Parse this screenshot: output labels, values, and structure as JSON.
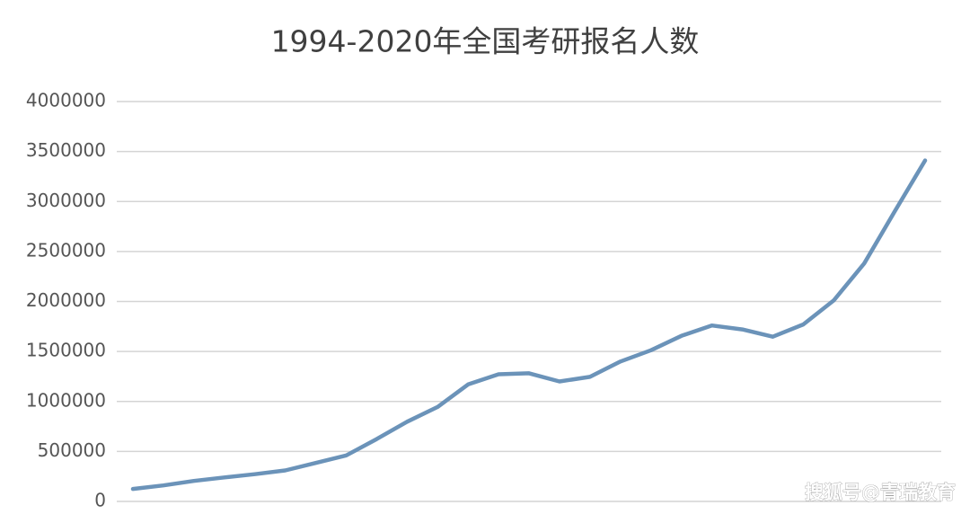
{
  "chart_data": {
    "type": "line",
    "title": "1994-2020年全国考研报名人数",
    "categories": [
      null,
      null,
      null,
      null,
      null,
      null,
      null,
      null,
      null,
      null,
      null,
      null,
      null,
      null,
      null,
      null,
      null,
      null,
      null,
      null,
      null,
      null,
      null,
      null,
      null,
      null,
      null
    ],
    "series": [
      {
        "name": null,
        "color": "#6b93b9",
        "values": [
          125000,
          160000,
          205000,
          240000,
          272000,
          310000,
          385000,
          460000,
          624000,
          797000,
          945000,
          1170000,
          1272000,
          1282000,
          1200000,
          1246000,
          1400000,
          1512000,
          1656000,
          1760000,
          1720000,
          1648000,
          1770000,
          2010000,
          2380000,
          2900000,
          3410000
        ]
      }
    ],
    "ylim": [
      0,
      4000000
    ],
    "yticks": [
      0,
      500000,
      1000000,
      1500000,
      2000000,
      2500000,
      3000000,
      3500000,
      4000000
    ],
    "grid": true,
    "watermark": "搜狐号@青瑞教育"
  }
}
